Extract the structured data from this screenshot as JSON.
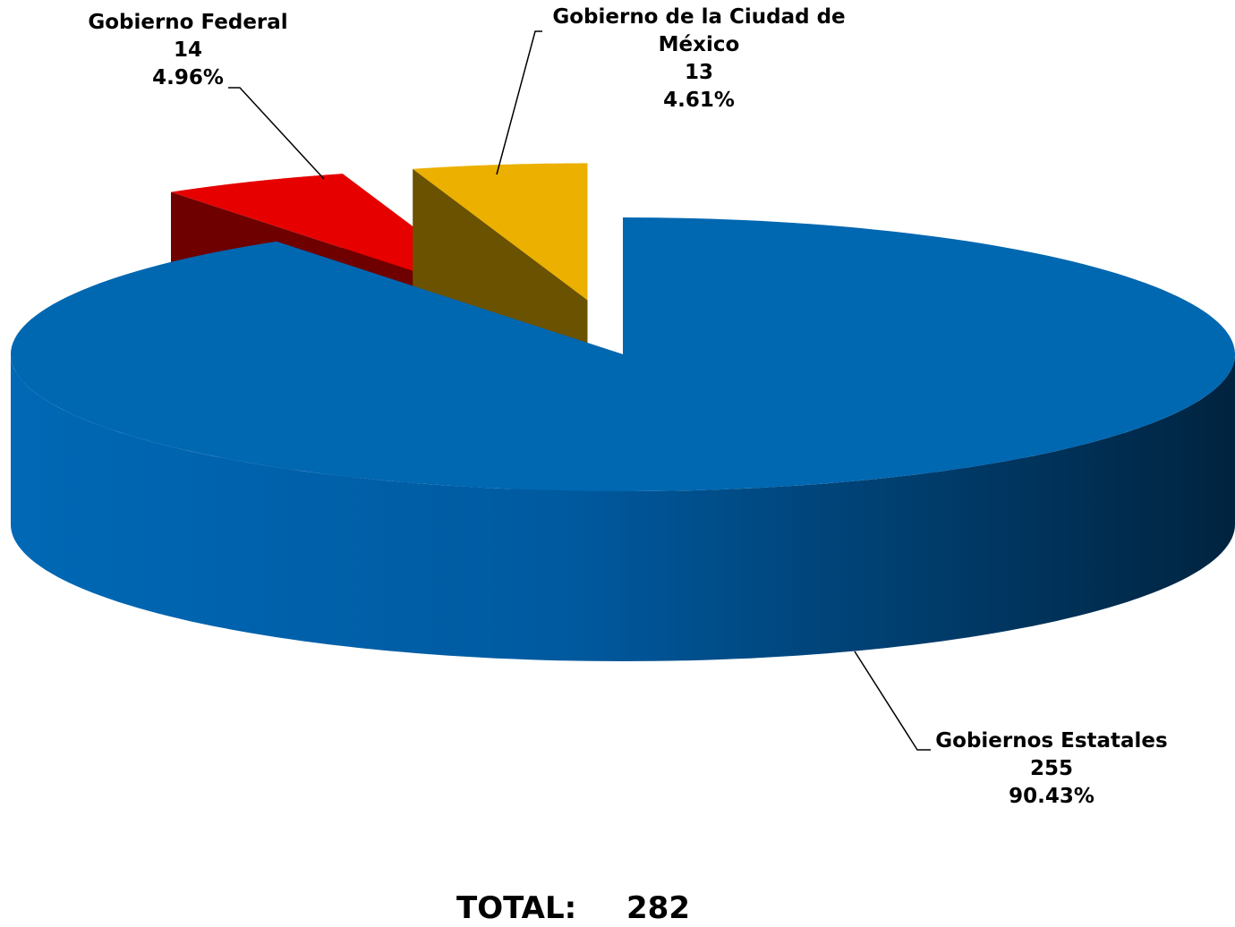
{
  "chart_data": {
    "type": "pie3d",
    "categories": [
      "Gobiernos Estatales",
      "Gobierno Federal",
      "Gobierno de la Ciudad de México"
    ],
    "values": [
      255,
      14,
      13
    ],
    "percent_labels": [
      "90.43%",
      "4.96%",
      "4.61%"
    ],
    "colors": [
      "#0067b1",
      "#e60000",
      "#ebb000"
    ],
    "side_colors": [
      "#004a80",
      "#6e0000",
      "#6b5200"
    ],
    "exploded": [
      false,
      true,
      true
    ],
    "total_label": "TOTAL:",
    "total": 282
  }
}
